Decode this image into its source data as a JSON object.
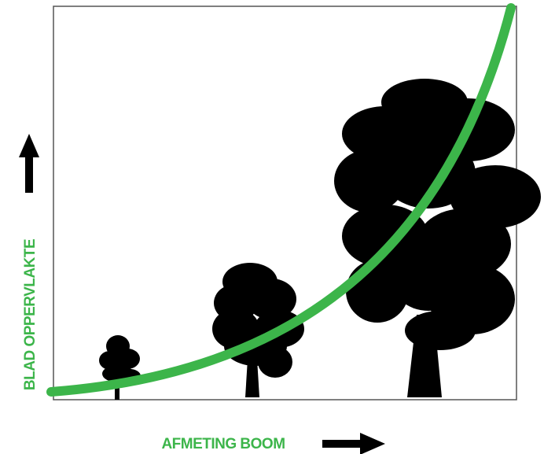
{
  "x_label": "AFMETING BOOM",
  "y_label": "BLAD OPPERVLAKTE"
}
